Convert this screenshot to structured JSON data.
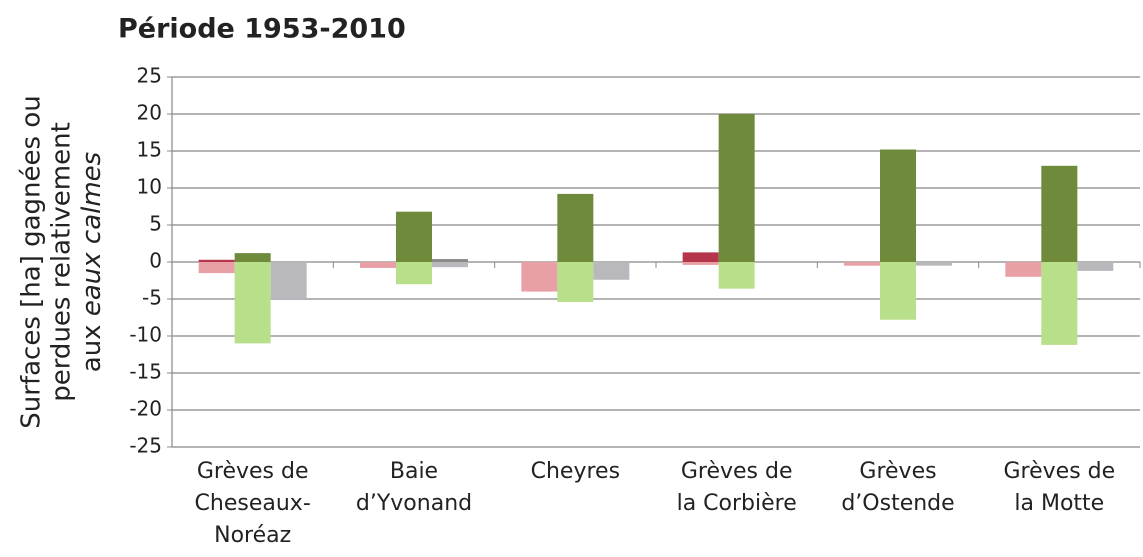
{
  "chart_data": {
    "type": "bar",
    "title": "Période 1953-2010",
    "y_label": [
      "Surfaces [ha] gagnées ou",
      "perdues relativement",
      "aux",
      "eaux calmes"
    ],
    "categories": [
      [
        "Grèves de",
        "Cheseaux-",
        "Noréaz"
      ],
      [
        "Baie",
        "d’Yvonand"
      ],
      [
        "Cheyres"
      ],
      [
        "Grèves de",
        "la Corbière"
      ],
      [
        "Grèves",
        "d’Ostende"
      ],
      [
        "Grèves de",
        "la Motte"
      ]
    ],
    "series": [
      {
        "color": "#b5364a",
        "values": [
          0.3,
          0,
          0,
          1.3,
          0,
          0
        ]
      },
      {
        "color": "#e8a0a6",
        "values": [
          -1.5,
          -0.8,
          -4,
          -0.4,
          -0.5,
          -2
        ]
      },
      {
        "color": "#6e8a3a",
        "values": [
          1.2,
          6.8,
          9.2,
          20,
          15.2,
          13
        ]
      },
      {
        "color": "#b8df8a",
        "values": [
          -11,
          -3,
          -5.4,
          -3.6,
          -7.8,
          -11.2
        ]
      },
      {
        "color": "#8a8a8a",
        "values": [
          0,
          0.4,
          0,
          0,
          0,
          0
        ]
      },
      {
        "color": "#b9b9bd",
        "values": [
          -5,
          -0.7,
          -2.4,
          0,
          -0.5,
          -1.2
        ]
      }
    ],
    "ylim": [
      -25,
      25
    ],
    "yticks": [
      -25,
      -20,
      -15,
      -10,
      -5,
      0,
      5,
      10,
      15,
      20,
      25
    ],
    "grid": true
  }
}
